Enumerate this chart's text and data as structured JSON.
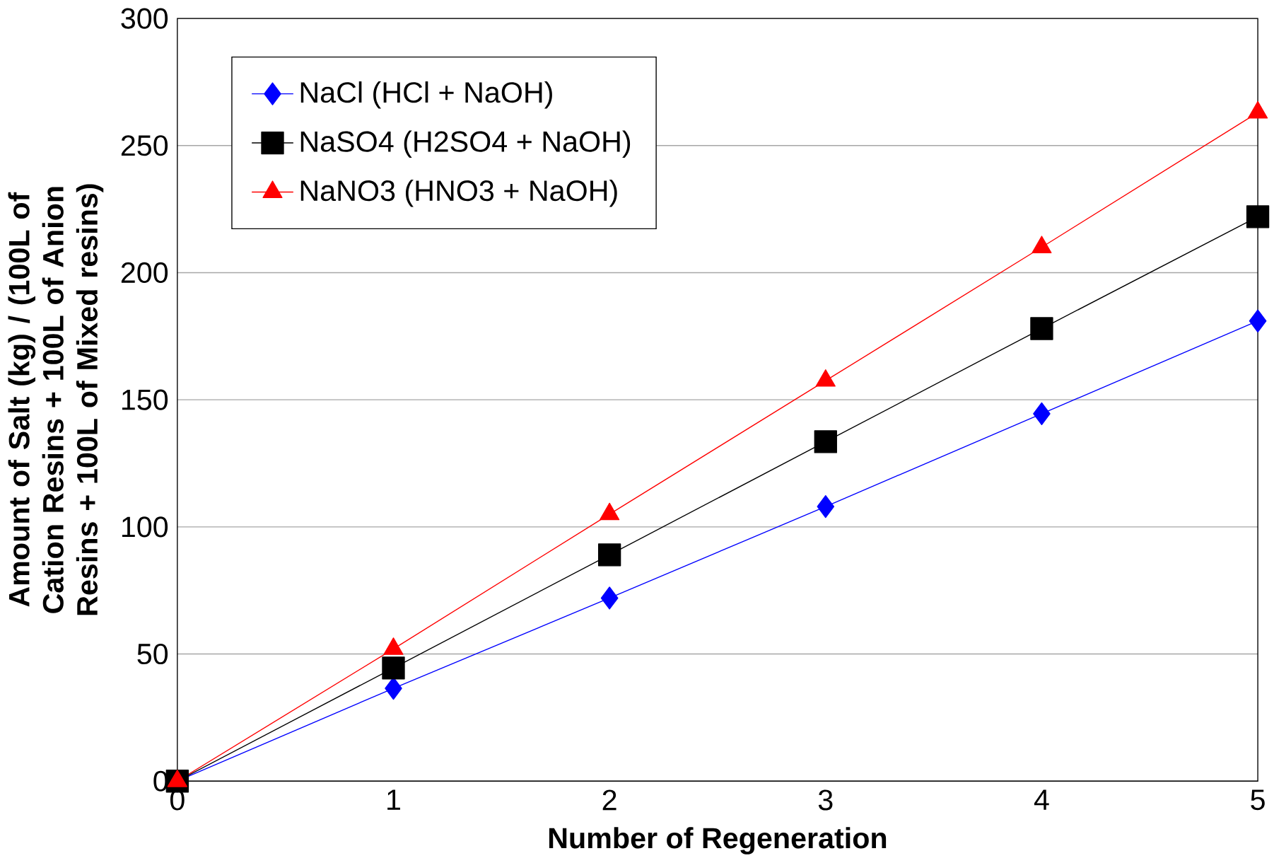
{
  "chart_data": {
    "type": "line",
    "xlabel": "Number of Regeneration",
    "ylabel": "Amount of Salt (kg) / (100L of Cation Resins + 100L of Anion Resins + 100L of Mixed resins)",
    "x": [
      0,
      1,
      2,
      3,
      4,
      5
    ],
    "series": [
      {
        "name": "NaCl (HCl + NaOH)",
        "color": "#0000ff",
        "marker": "diamond",
        "values": [
          0,
          36.5,
          72,
          108,
          144.5,
          181
        ]
      },
      {
        "name": "NaSO4 (H2SO4 + NaOH)",
        "color": "#000000",
        "marker": "square",
        "values": [
          0,
          44.5,
          89,
          133.5,
          178,
          222
        ]
      },
      {
        "name": "NaNO3 (HNO3 + NaOH)",
        "color": "#ff0000",
        "marker": "triangle",
        "values": [
          0,
          52,
          105,
          157.5,
          210,
          263
        ]
      }
    ],
    "xlim": [
      0,
      5
    ],
    "ylim": [
      0,
      300
    ],
    "xticks": [
      0,
      1,
      2,
      3,
      4,
      5
    ],
    "yticks": [
      0,
      50,
      100,
      150,
      200,
      250,
      300
    ],
    "grid": "y",
    "legend": "top left"
  }
}
